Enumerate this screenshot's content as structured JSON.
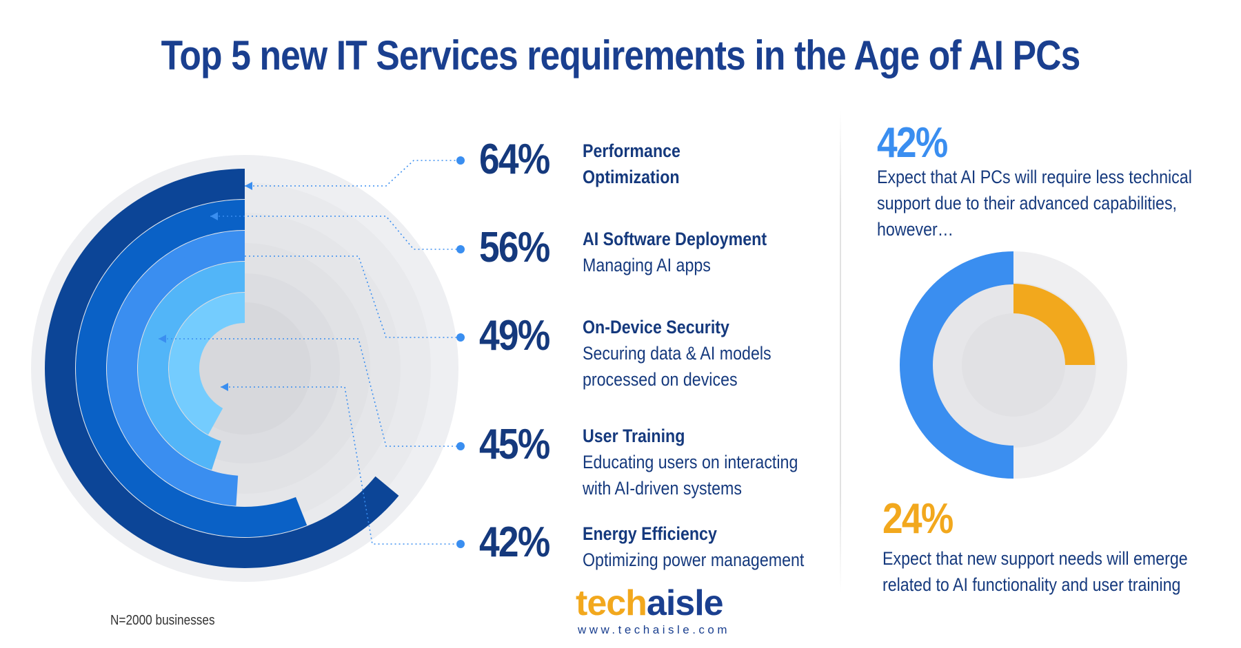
{
  "title": "Top 5 new IT Services requirements in the Age of AI PCs",
  "chart_data": [
    {
      "type": "radial-bar",
      "unit": "%",
      "items": [
        {
          "value": 64,
          "label": "64%",
          "title": "Performance",
          "title2": "Optimization",
          "desc": "",
          "desc2": ""
        },
        {
          "value": 56,
          "label": "56%",
          "title": "AI Software Deployment",
          "title2": "",
          "desc": "Managing AI apps",
          "desc2": ""
        },
        {
          "value": 49,
          "label": "49%",
          "title": "On-Device Security",
          "title2": "",
          "desc": "Securing data & AI models",
          "desc2": "processed on devices"
        },
        {
          "value": 45,
          "label": "45%",
          "title": "User Training",
          "title2": "",
          "desc": "Educating users on interacting",
          "desc2": "with AI-driven systems"
        },
        {
          "value": 42,
          "label": "42%",
          "title": "Energy Efficiency",
          "title2": "",
          "desc": "Optimizing power management",
          "desc2": ""
        }
      ],
      "colors": [
        "#0c4597",
        "#0a61c6",
        "#3a8ef0",
        "#52b5f8",
        "#74ccfe"
      ]
    },
    {
      "type": "pie",
      "slices": [
        {
          "value": 42,
          "label": "42%",
          "color": "#3a8ef0"
        },
        {
          "value": 24,
          "label": "24%",
          "color": "#f2a81d"
        }
      ]
    }
  ],
  "stats": {
    "first": {
      "value": "42%",
      "lines": [
        "Expect that AI PCs will require less technical",
        "support due to their advanced capabilities,",
        "however…"
      ],
      "color": "#3a8ef0"
    },
    "second": {
      "value": "24%",
      "lines": [
        "Expect that new support needs will emerge",
        "related to AI functionality and user training"
      ],
      "color": "#f2a81d"
    }
  },
  "sample_note": "N=2000 businesses",
  "logo": {
    "part1": "tech",
    "part2": "aisle",
    "url": "www.techaisle.com"
  }
}
